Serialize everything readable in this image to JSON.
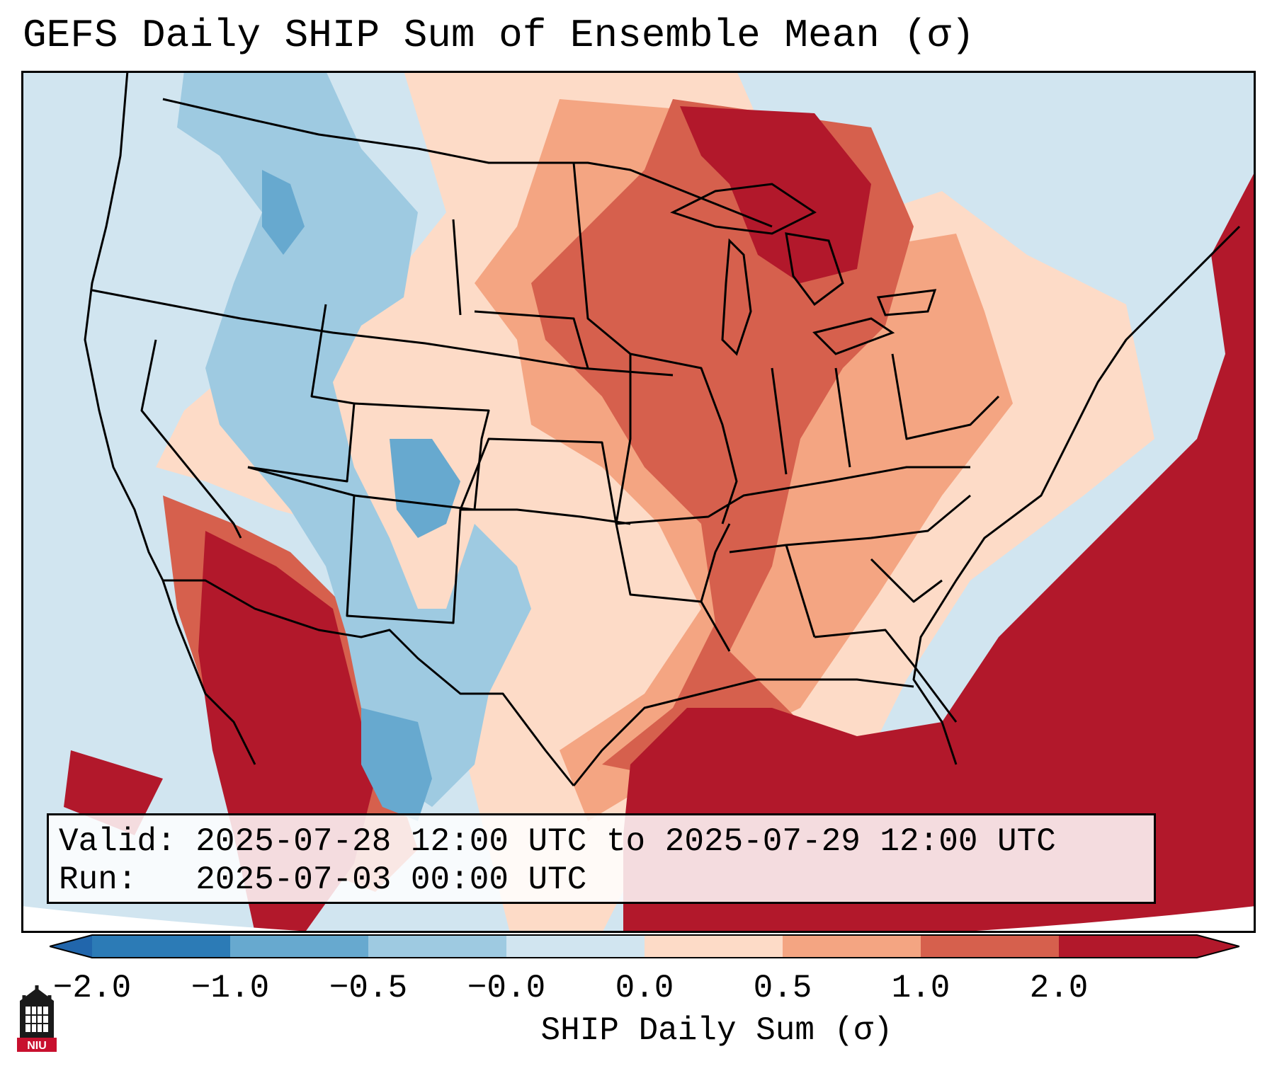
{
  "title": "GEFS Daily SHIP Sum of Ensemble Mean (σ)",
  "info": {
    "valid_label": "Valid:",
    "valid_value": "2025-07-28 12:00 UTC to 2025-07-29 12:00 UTC",
    "run_label": "Run:",
    "run_value": "2025-07-03 00:00 UTC"
  },
  "colorbar": {
    "label": "SHIP Daily Sum (σ)",
    "ticks": [
      "−2.0",
      "−1.0",
      "−0.5",
      "−0.0",
      "0.0",
      "0.5",
      "1.0",
      "2.0"
    ],
    "colors": [
      "#2c7bb6",
      "#67a9cf",
      "#9ecae1",
      "#d1e5f0",
      "#fddbc7",
      "#f4a582",
      "#d6604d",
      "#b2182b"
    ],
    "under_color": "#2166ac",
    "over_color": "#b2182b"
  },
  "logo": {
    "text": "NIU",
    "icon": "niu-building-logo"
  },
  "map": {
    "projection": "conic",
    "region": "Contiguous United States and northern Mexico",
    "features": [
      "state-borders",
      "coastlines",
      "great-lakes"
    ]
  }
}
